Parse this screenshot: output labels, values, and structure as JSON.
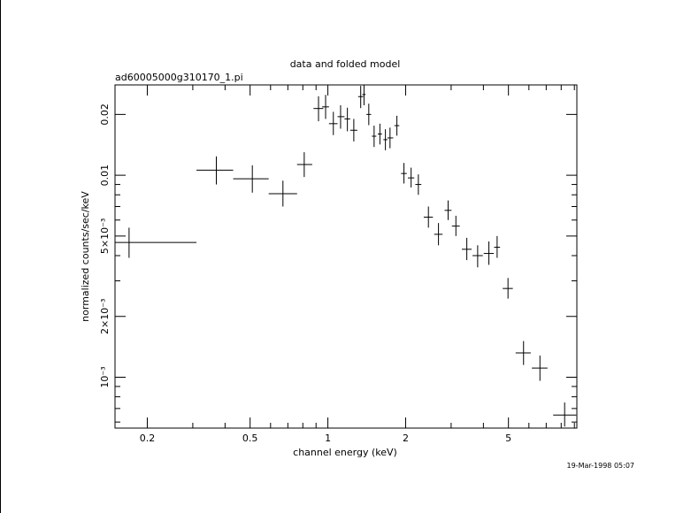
{
  "chart_data": {
    "type": "scatter",
    "title": "data and folded model",
    "subtitle": "ad60005000g310170_1.pi",
    "xlabel": "channel energy (keV)",
    "ylabel": "normalized counts/sec/keV",
    "timestamp": "19-Mar-1998 05:07",
    "x_scale": "log",
    "y_scale": "log",
    "xlim": [
      0.15,
      9.2
    ],
    "ylim": [
      0.00056,
      0.028
    ],
    "x_tick_labels": [
      "0.2",
      "0.5",
      "1",
      "2",
      "5"
    ],
    "y_tick_labels": [
      "10⁻³",
      "2×10⁻³",
      "5×10⁻³",
      "0.01",
      "0.02"
    ],
    "points": [
      {
        "x": 0.17,
        "xlo": 0.15,
        "xhi": 0.31,
        "y": 0.00465,
        "ylo": 0.0039,
        "yhi": 0.0055
      },
      {
        "x": 0.37,
        "xlo": 0.31,
        "xhi": 0.43,
        "y": 0.0106,
        "ylo": 0.009,
        "yhi": 0.0124
      },
      {
        "x": 0.51,
        "xlo": 0.43,
        "xhi": 0.59,
        "y": 0.0096,
        "ylo": 0.0082,
        "yhi": 0.0112
      },
      {
        "x": 0.67,
        "xlo": 0.59,
        "xhi": 0.76,
        "y": 0.0081,
        "ylo": 0.007,
        "yhi": 0.0094
      },
      {
        "x": 0.81,
        "xlo": 0.76,
        "xhi": 0.87,
        "y": 0.0113,
        "ylo": 0.0098,
        "yhi": 0.013
      },
      {
        "x": 0.92,
        "xlo": 0.88,
        "xhi": 0.96,
        "y": 0.0214,
        "ylo": 0.0185,
        "yhi": 0.0246
      },
      {
        "x": 0.98,
        "xlo": 0.95,
        "xhi": 1.01,
        "y": 0.0218,
        "ylo": 0.019,
        "yhi": 0.025
      },
      {
        "x": 1.05,
        "xlo": 1.01,
        "xhi": 1.09,
        "y": 0.018,
        "ylo": 0.0158,
        "yhi": 0.0206
      },
      {
        "x": 1.12,
        "xlo": 1.09,
        "xhi": 1.16,
        "y": 0.0195,
        "ylo": 0.017,
        "yhi": 0.0222
      },
      {
        "x": 1.19,
        "xlo": 1.16,
        "xhi": 1.22,
        "y": 0.019,
        "ylo": 0.0165,
        "yhi": 0.0216
      },
      {
        "x": 1.26,
        "xlo": 1.22,
        "xhi": 1.3,
        "y": 0.0167,
        "ylo": 0.0147,
        "yhi": 0.019
      },
      {
        "x": 1.34,
        "xlo": 1.31,
        "xhi": 1.37,
        "y": 0.0245,
        "ylo": 0.0215,
        "yhi": 0.0277
      },
      {
        "x": 1.38,
        "xlo": 1.36,
        "xhi": 1.4,
        "y": 0.0251,
        "ylo": 0.0222,
        "yhi": 0.0282
      },
      {
        "x": 1.44,
        "xlo": 1.41,
        "xhi": 1.47,
        "y": 0.02,
        "ylo": 0.0177,
        "yhi": 0.0226
      },
      {
        "x": 1.51,
        "xlo": 1.48,
        "xhi": 1.54,
        "y": 0.0156,
        "ylo": 0.0138,
        "yhi": 0.0176
      },
      {
        "x": 1.59,
        "xlo": 1.56,
        "xhi": 1.62,
        "y": 0.016,
        "ylo": 0.0142,
        "yhi": 0.018
      },
      {
        "x": 1.67,
        "xlo": 1.64,
        "xhi": 1.7,
        "y": 0.015,
        "ylo": 0.0133,
        "yhi": 0.0169
      },
      {
        "x": 1.74,
        "xlo": 1.7,
        "xhi": 1.79,
        "y": 0.0153,
        "ylo": 0.0136,
        "yhi": 0.0172
      },
      {
        "x": 1.85,
        "xlo": 1.81,
        "xhi": 1.89,
        "y": 0.0176,
        "ylo": 0.0157,
        "yhi": 0.0197
      },
      {
        "x": 1.97,
        "xlo": 1.92,
        "xhi": 2.02,
        "y": 0.0102,
        "ylo": 0.0091,
        "yhi": 0.0115
      },
      {
        "x": 2.1,
        "xlo": 2.04,
        "xhi": 2.16,
        "y": 0.0097,
        "ylo": 0.0087,
        "yhi": 0.0109
      },
      {
        "x": 2.24,
        "xlo": 2.18,
        "xhi": 2.3,
        "y": 0.009,
        "ylo": 0.008,
        "yhi": 0.0101
      },
      {
        "x": 2.45,
        "xlo": 2.35,
        "xhi": 2.55,
        "y": 0.0062,
        "ylo": 0.0055,
        "yhi": 0.007
      },
      {
        "x": 2.68,
        "xlo": 2.58,
        "xhi": 2.78,
        "y": 0.0051,
        "ylo": 0.0045,
        "yhi": 0.0058
      },
      {
        "x": 2.92,
        "xlo": 2.83,
        "xhi": 3.01,
        "y": 0.0067,
        "ylo": 0.006,
        "yhi": 0.0075
      },
      {
        "x": 3.13,
        "xlo": 3.02,
        "xhi": 3.24,
        "y": 0.0056,
        "ylo": 0.005,
        "yhi": 0.0063
      },
      {
        "x": 3.45,
        "xlo": 3.3,
        "xhi": 3.6,
        "y": 0.0043,
        "ylo": 0.0038,
        "yhi": 0.0049
      },
      {
        "x": 3.8,
        "xlo": 3.63,
        "xhi": 3.98,
        "y": 0.004,
        "ylo": 0.0035,
        "yhi": 0.0045
      },
      {
        "x": 4.2,
        "xlo": 4.01,
        "xhi": 4.39,
        "y": 0.0041,
        "ylo": 0.0036,
        "yhi": 0.0047
      },
      {
        "x": 4.52,
        "xlo": 4.4,
        "xhi": 4.64,
        "y": 0.0044,
        "ylo": 0.0039,
        "yhi": 0.005
      },
      {
        "x": 4.98,
        "xlo": 4.75,
        "xhi": 5.2,
        "y": 0.00275,
        "ylo": 0.00245,
        "yhi": 0.0031
      },
      {
        "x": 5.72,
        "xlo": 5.33,
        "xhi": 6.1,
        "y": 0.00132,
        "ylo": 0.00115,
        "yhi": 0.00151
      },
      {
        "x": 6.62,
        "xlo": 6.16,
        "xhi": 7.08,
        "y": 0.00111,
        "ylo": 0.00096,
        "yhi": 0.00128
      },
      {
        "x": 8.25,
        "xlo": 7.45,
        "xhi": 9.15,
        "y": 0.00065,
        "ylo": 0.00057,
        "yhi": 0.00075
      }
    ]
  }
}
